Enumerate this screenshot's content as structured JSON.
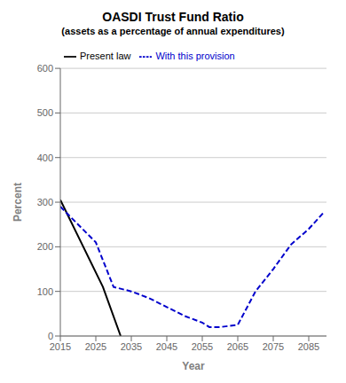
{
  "chart_data": {
    "type": "line",
    "title": "OASDI Trust Fund Ratio",
    "subtitle": "(assets as a percentage of annual expenditures)",
    "xlabel": "Year",
    "ylabel": "Percent",
    "xlim": [
      2015,
      2090
    ],
    "xticks": [
      2015,
      2025,
      2035,
      2045,
      2055,
      2065,
      2075,
      2085
    ],
    "ylim": [
      0,
      600
    ],
    "yticks": [
      0,
      100,
      200,
      300,
      400,
      500,
      600
    ],
    "grid": true,
    "legend": "upper left",
    "series": [
      {
        "name": "Present law",
        "color": "#000000",
        "line_style": "solid",
        "x": [
          2015,
          2027,
          2032
        ],
        "values": [
          305,
          110,
          0
        ]
      },
      {
        "name": "With this provision",
        "color": "#0000cc",
        "line_style": "dashed",
        "x": [
          2015,
          2025,
          2030,
          2035,
          2040,
          2045,
          2050,
          2055,
          2057,
          2060,
          2065,
          2070,
          2075,
          2080,
          2085,
          2089
        ],
        "values": [
          290,
          210,
          110,
          100,
          85,
          65,
          45,
          30,
          20,
          20,
          25,
          100,
          150,
          205,
          240,
          275
        ]
      }
    ]
  }
}
